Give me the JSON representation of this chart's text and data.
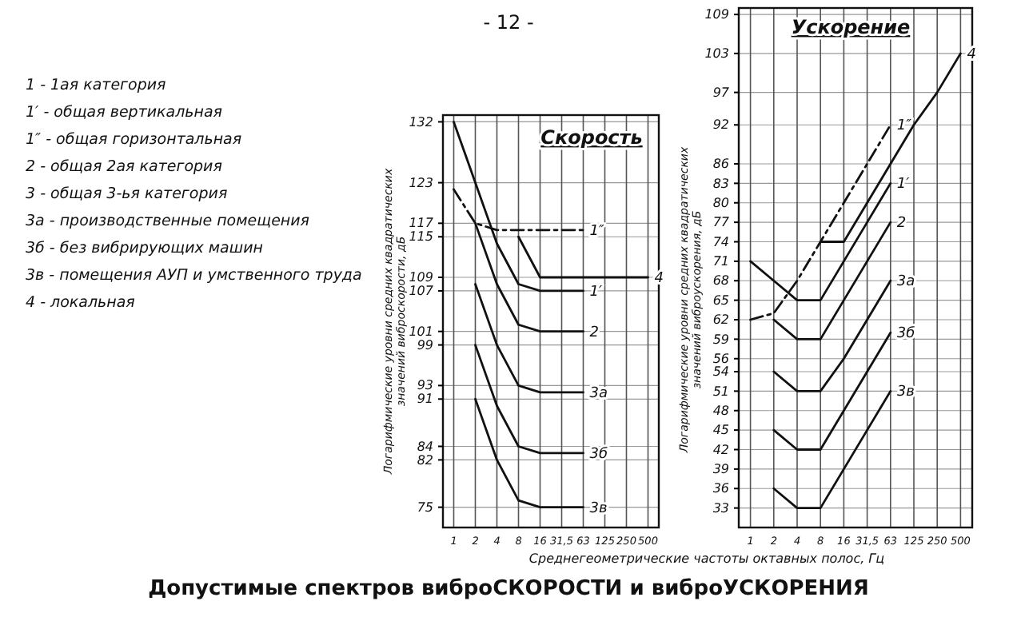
{
  "chart_data": [
    {
      "type": "line",
      "title": "Скорость",
      "xlabel": "Среднегеометрические частоты октавных полос, Гц",
      "ylabel": "Логарифмические уровни средних квадратических значений виброскорости, дБ",
      "categories": [
        "1",
        "2",
        "4",
        "8",
        "16",
        "31,5",
        "63",
        "125",
        "250",
        "500"
      ],
      "ylim": [
        72,
        133
      ],
      "yticks": [
        132,
        123,
        117,
        115,
        109,
        107,
        101,
        99,
        93,
        91,
        84,
        82,
        75
      ],
      "grid": true,
      "legend": false,
      "line_style": "solid",
      "annotations": [
        "- 12 -",
        "1 - 1ая категория",
        "1′ - общая вертикальная",
        "1″ - общая горизонтальная",
        "2 - общая 2ая категория",
        "3 - общая 3-ья категория",
        "3а - производственные помещения",
        "3б - без вибрирующих машин",
        "3в - помещения АУП и умственного труда",
        "4 - локальная",
        "Допустимые спектров виброСКОРОСТИ и виброУСКОРЕНИЯ"
      ],
      "series": [
        {
          "name": "1′",
          "color": "#111111",
          "values": [
            132,
            123,
            114,
            108,
            107,
            107,
            107,
            null,
            null,
            null
          ]
        },
        {
          "name": "1″",
          "color": "#111111",
          "line_style": "dashed",
          "values": [
            122,
            117,
            116,
            116,
            116,
            116,
            116,
            null,
            null,
            null
          ]
        },
        {
          "name": "2",
          "color": "#111111",
          "values": [
            null,
            117,
            108,
            102,
            101,
            101,
            101,
            null,
            null,
            null
          ]
        },
        {
          "name": "3а",
          "color": "#111111",
          "values": [
            null,
            108,
            99,
            93,
            92,
            92,
            92,
            null,
            null,
            null
          ]
        },
        {
          "name": "3б",
          "color": "#111111",
          "values": [
            null,
            99,
            90,
            84,
            83,
            83,
            83,
            null,
            null,
            null
          ]
        },
        {
          "name": "3в",
          "color": "#111111",
          "values": [
            null,
            91,
            82,
            76,
            75,
            75,
            75,
            null,
            null,
            null
          ]
        },
        {
          "name": "4",
          "color": "#111111",
          "values": [
            null,
            null,
            null,
            115,
            109,
            109,
            109,
            109,
            109,
            109
          ]
        }
      ]
    },
    {
      "type": "line",
      "title": "Ускорение",
      "ylabel": "Логарифмические уровни средних квадратических значений виброускорения, дБ",
      "categories": [
        "1",
        "2",
        "4",
        "8",
        "16",
        "31,5",
        "63",
        "125",
        "250",
        "500"
      ],
      "ylim": [
        30,
        110
      ],
      "yticks": [
        109,
        103,
        97,
        92,
        86,
        83,
        80,
        77,
        74,
        71,
        68,
        65,
        62,
        59,
        56,
        54,
        51,
        48,
        45,
        42,
        39,
        36,
        33
      ],
      "grid": true,
      "legend": false,
      "line_style": "solid",
      "series": [
        {
          "name": "1′",
          "color": "#111111",
          "values": [
            71,
            68,
            65,
            65,
            71,
            77,
            83,
            null,
            null,
            null
          ]
        },
        {
          "name": "1″",
          "color": "#111111",
          "line_style": "dashed",
          "values": [
            62,
            63,
            68,
            74,
            80,
            86,
            92,
            null,
            null,
            null
          ]
        },
        {
          "name": "2",
          "color": "#111111",
          "values": [
            null,
            62,
            59,
            59,
            65,
            71,
            77,
            null,
            null,
            null
          ]
        },
        {
          "name": "3а",
          "color": "#111111",
          "values": [
            null,
            54,
            51,
            51,
            56,
            62,
            68,
            null,
            null,
            null
          ]
        },
        {
          "name": "3б",
          "color": "#111111",
          "values": [
            null,
            45,
            42,
            42,
            48,
            54,
            60,
            null,
            null,
            null
          ]
        },
        {
          "name": "3в",
          "color": "#111111",
          "values": [
            null,
            36,
            33,
            33,
            39,
            45,
            51,
            null,
            null,
            null
          ]
        },
        {
          "name": "4",
          "color": "#111111",
          "values": [
            null,
            null,
            null,
            74,
            74,
            80,
            86,
            92,
            97,
            103
          ]
        }
      ]
    }
  ]
}
